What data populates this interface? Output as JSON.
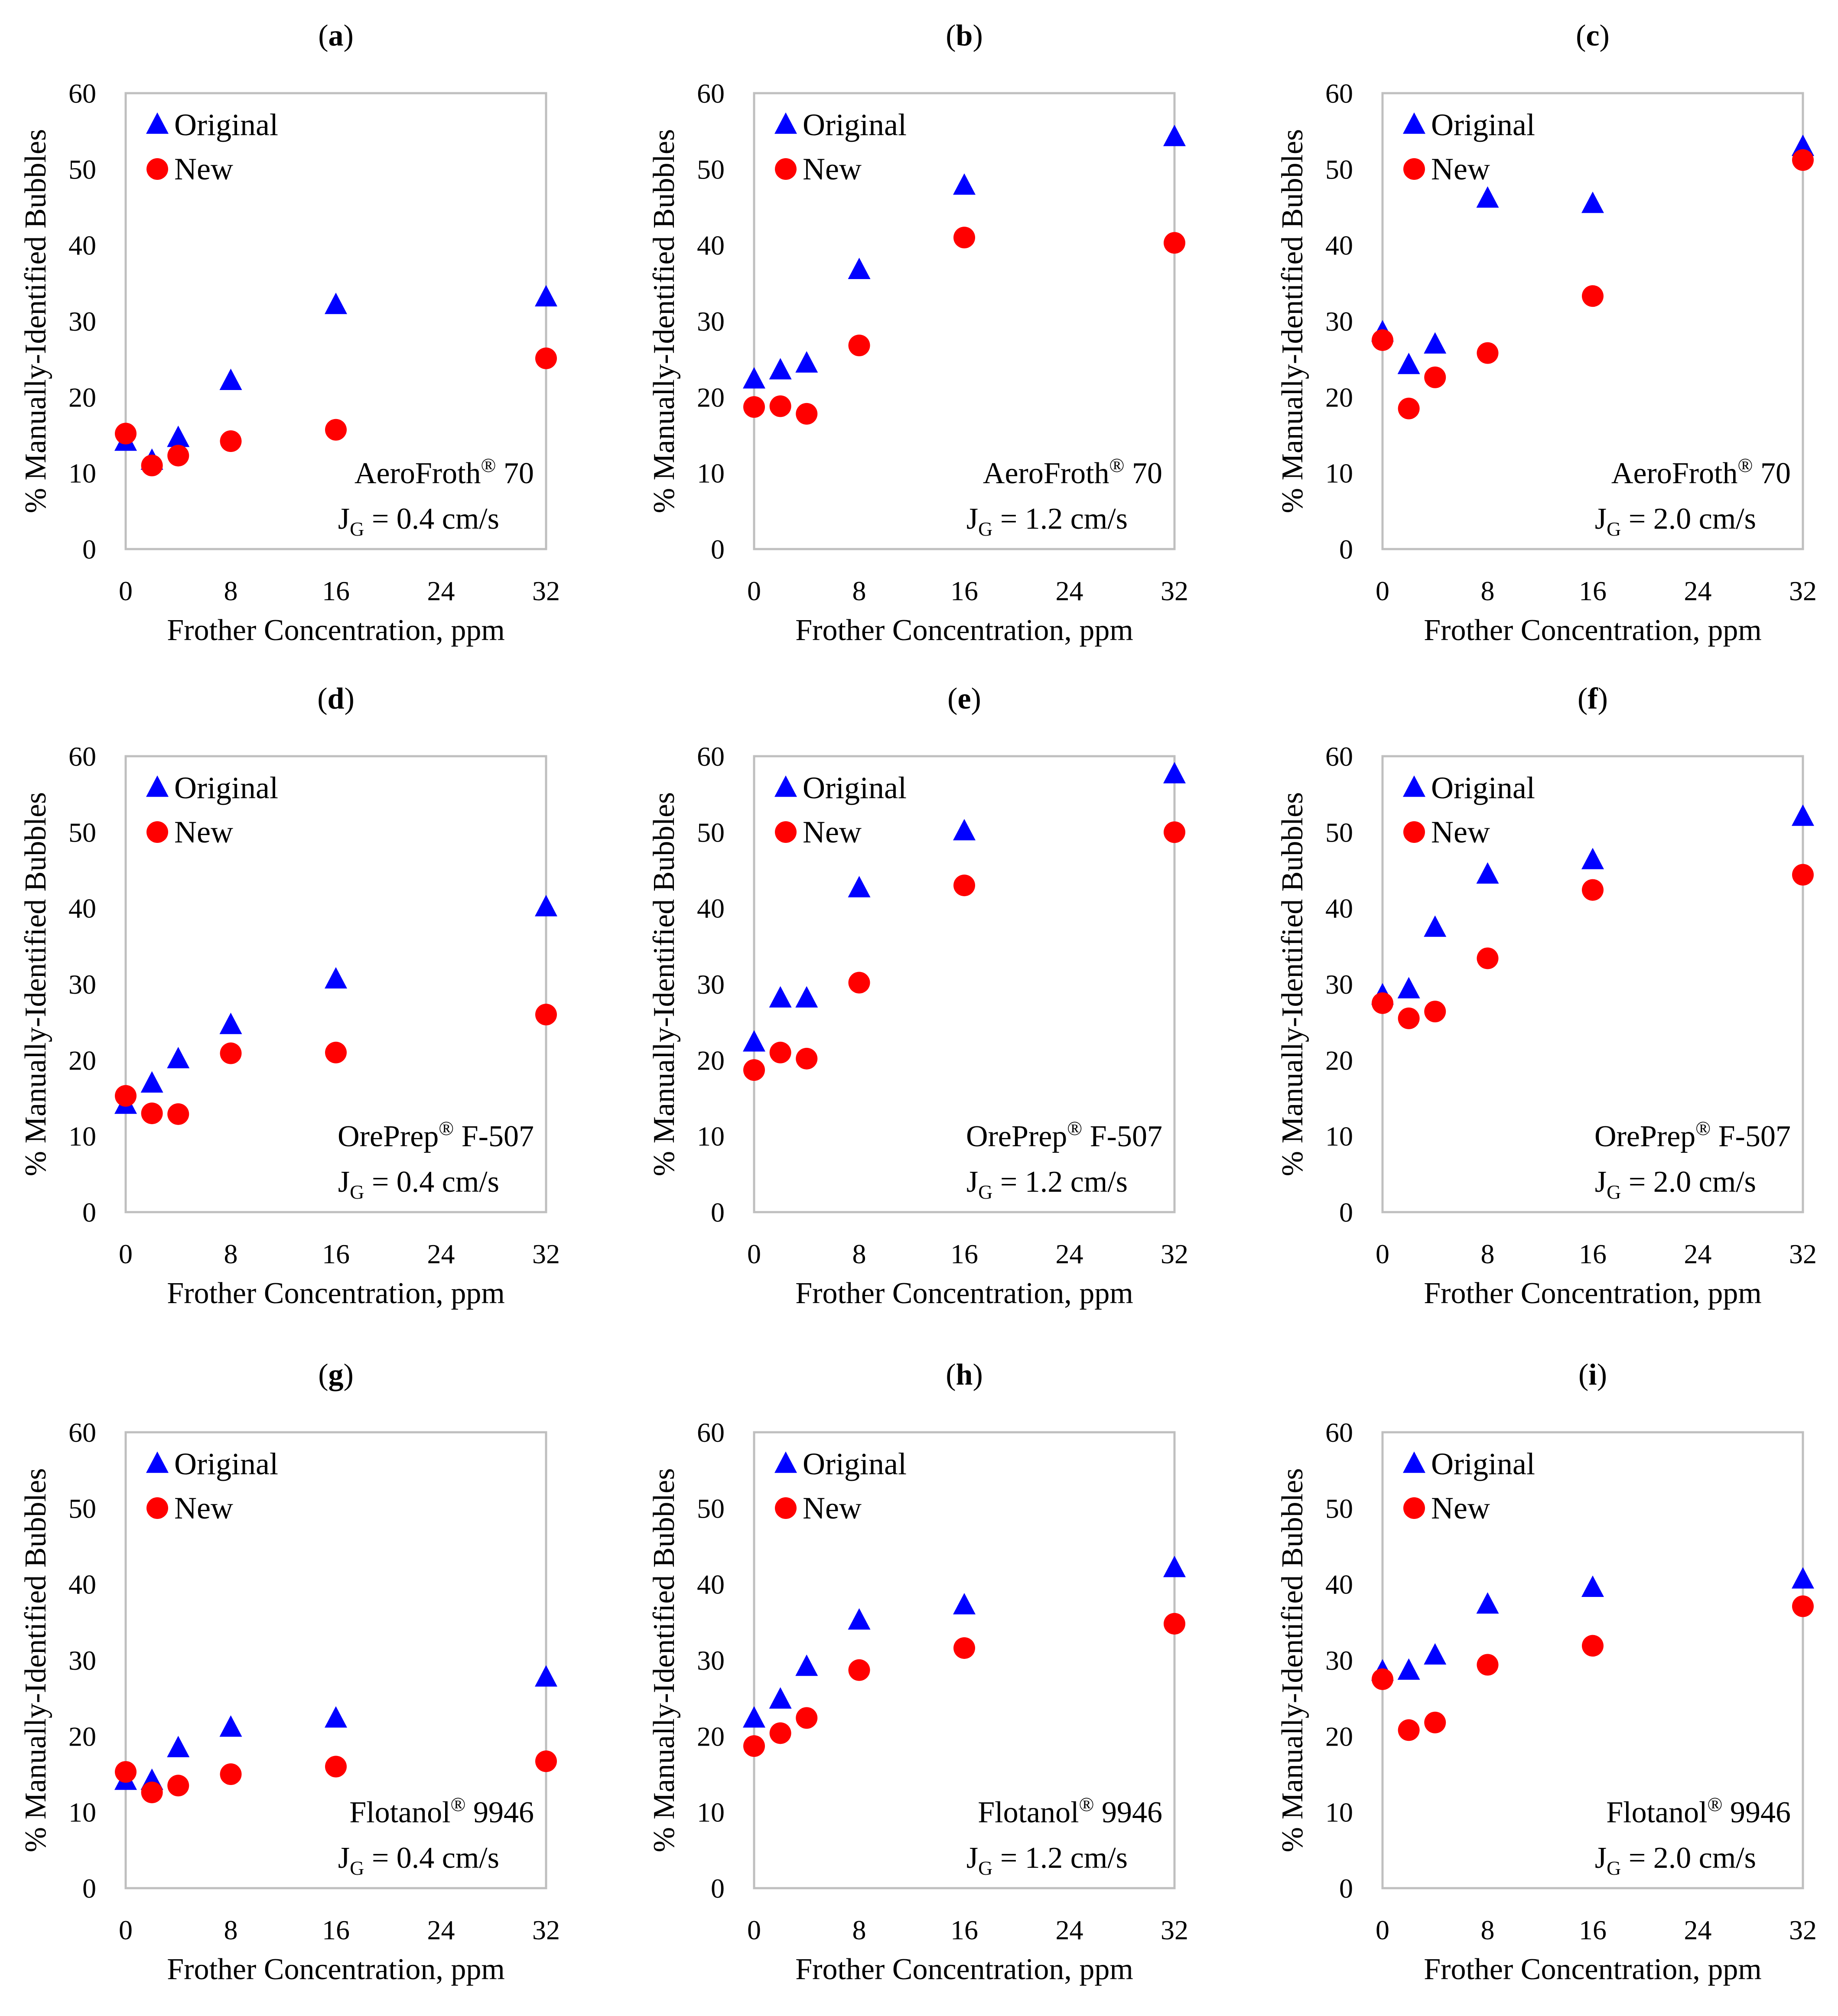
{
  "figure": {
    "legend": {
      "original": "Original",
      "new": "New"
    },
    "colors": {
      "original": "#0000FF",
      "new": "#FF0000",
      "frame": "#BFBFBF"
    }
  },
  "chart_data": [
    {
      "type": "scatter",
      "panel_letter": "a",
      "frother": "AeroFroth",
      "reg_mark": "®",
      "frother_suffix": " 70",
      "jg_prefix": "J",
      "jg_sub": "G",
      "jg_value": " = 0.4 cm/s",
      "xlabel": "Frother Concentration, ppm",
      "ylabel": "% Manually-Identified Bubbles",
      "xlim": [
        0,
        32
      ],
      "ylim": [
        0,
        60
      ],
      "xticks": [
        "0",
        "8",
        "16",
        "24",
        "32"
      ],
      "yticks": [
        "0",
        "10",
        "20",
        "30",
        "40",
        "50",
        "60"
      ],
      "series": [
        {
          "name": "Original",
          "marker": "triangle",
          "x": [
            0,
            2,
            4,
            8,
            16,
            32
          ],
          "y": [
            14,
            11.5,
            14.5,
            22,
            32,
            33
          ]
        },
        {
          "name": "New",
          "marker": "circle",
          "x": [
            0,
            2,
            4,
            8,
            16,
            32
          ],
          "y": [
            15.2,
            11,
            12.3,
            14.2,
            15.7,
            25.1
          ]
        }
      ]
    },
    {
      "type": "scatter",
      "panel_letter": "b",
      "frother": "AeroFroth",
      "reg_mark": "®",
      "frother_suffix": " 70",
      "jg_prefix": "J",
      "jg_sub": "G",
      "jg_value": " = 1.2 cm/s",
      "xlabel": "Frother Concentration, ppm",
      "ylabel": "% Manually-Identified Bubbles",
      "xlim": [
        0,
        32
      ],
      "ylim": [
        0,
        60
      ],
      "xticks": [
        "0",
        "8",
        "16",
        "24",
        "32"
      ],
      "yticks": [
        "0",
        "10",
        "20",
        "30",
        "40",
        "50",
        "60"
      ],
      "series": [
        {
          "name": "Original",
          "marker": "triangle",
          "x": [
            0,
            2,
            4,
            8,
            16,
            32
          ],
          "y": [
            22.2,
            23.4,
            24.3,
            36.6,
            47.7,
            54.1
          ]
        },
        {
          "name": "New",
          "marker": "circle",
          "x": [
            0,
            2,
            4,
            8,
            16,
            32
          ],
          "y": [
            18.7,
            18.8,
            17.8,
            26.8,
            41,
            40.3
          ]
        }
      ]
    },
    {
      "type": "scatter",
      "panel_letter": "c",
      "frother": "AeroFroth",
      "reg_mark": "®",
      "frother_suffix": " 70",
      "jg_prefix": "J",
      "jg_sub": "G",
      "jg_value": " = 2.0 cm/s",
      "xlabel": "Frother Concentration, ppm",
      "ylabel": "% Manually-Identified Bubbles",
      "xlim": [
        0,
        32
      ],
      "ylim": [
        0,
        60
      ],
      "xticks": [
        "0",
        "8",
        "16",
        "24",
        "32"
      ],
      "yticks": [
        "0",
        "10",
        "20",
        "30",
        "40",
        "50",
        "60"
      ],
      "series": [
        {
          "name": "Original",
          "marker": "triangle",
          "x": [
            0,
            2,
            4,
            8,
            16,
            32
          ],
          "y": [
            28.4,
            24.1,
            26.8,
            46,
            45.3,
            52.8
          ]
        },
        {
          "name": "New",
          "marker": "circle",
          "x": [
            0,
            2,
            4,
            8,
            16,
            32
          ],
          "y": [
            27.5,
            18.5,
            22.6,
            25.8,
            33.3,
            51.2
          ]
        }
      ]
    },
    {
      "type": "scatter",
      "panel_letter": "d",
      "frother": "OrePrep",
      "reg_mark": "®",
      "frother_suffix": " F-507",
      "jg_prefix": "J",
      "jg_sub": "G",
      "jg_value": " = 0.4 cm/s",
      "xlabel": "Frother Concentration, ppm",
      "ylabel": "% Manually-Identified Bubbles",
      "xlim": [
        0,
        32
      ],
      "ylim": [
        0,
        60
      ],
      "xticks": [
        "0",
        "8",
        "16",
        "24",
        "32"
      ],
      "yticks": [
        "0",
        "10",
        "20",
        "30",
        "40",
        "50",
        "60"
      ],
      "series": [
        {
          "name": "Original",
          "marker": "triangle",
          "x": [
            0,
            2,
            4,
            8,
            16,
            32
          ],
          "y": [
            14,
            16.8,
            20,
            24.5,
            30.5,
            40
          ]
        },
        {
          "name": "New",
          "marker": "circle",
          "x": [
            0,
            2,
            4,
            8,
            16,
            32
          ],
          "y": [
            15.3,
            13,
            12.9,
            20.9,
            21,
            26
          ]
        }
      ]
    },
    {
      "type": "scatter",
      "panel_letter": "e",
      "frother": "OrePrep",
      "reg_mark": "®",
      "frother_suffix": " F-507",
      "jg_prefix": "J",
      "jg_sub": "G",
      "jg_value": " = 1.2 cm/s",
      "xlabel": "Frother Concentration, ppm",
      "ylabel": "% Manually-Identified Bubbles",
      "xlim": [
        0,
        32
      ],
      "ylim": [
        0,
        60
      ],
      "xticks": [
        "0",
        "8",
        "16",
        "24",
        "32"
      ],
      "yticks": [
        "0",
        "10",
        "20",
        "30",
        "40",
        "50",
        "60"
      ],
      "series": [
        {
          "name": "Original",
          "marker": "triangle",
          "x": [
            0,
            2,
            4,
            8,
            16,
            32
          ],
          "y": [
            22.2,
            28,
            28,
            42.5,
            50,
            57.5
          ]
        },
        {
          "name": "New",
          "marker": "circle",
          "x": [
            0,
            2,
            4,
            8,
            16,
            32
          ],
          "y": [
            18.7,
            21,
            20.2,
            30.2,
            43,
            50
          ]
        }
      ]
    },
    {
      "type": "scatter",
      "panel_letter": "f",
      "frother": "OrePrep",
      "reg_mark": "®",
      "frother_suffix": " F-507",
      "jg_prefix": "J",
      "jg_sub": "G",
      "jg_value": " = 2.0 cm/s",
      "xlabel": "Frother Concentration, ppm",
      "ylabel": "% Manually-Identified Bubbles",
      "xlim": [
        0,
        32
      ],
      "ylim": [
        0,
        60
      ],
      "xticks": [
        "0",
        "8",
        "16",
        "24",
        "32"
      ],
      "yticks": [
        "0",
        "10",
        "20",
        "30",
        "40",
        "50",
        "60"
      ],
      "series": [
        {
          "name": "Original",
          "marker": "triangle",
          "x": [
            0,
            2,
            4,
            8,
            16,
            32
          ],
          "y": [
            28.4,
            29.2,
            37.3,
            44.3,
            46.2,
            51.9
          ]
        },
        {
          "name": "New",
          "marker": "circle",
          "x": [
            0,
            2,
            4,
            8,
            16,
            32
          ],
          "y": [
            27.5,
            25.5,
            26.4,
            33.4,
            42.4,
            44.4
          ]
        }
      ]
    },
    {
      "type": "scatter",
      "panel_letter": "g",
      "frother": "Flotanol",
      "reg_mark": "®",
      "frother_suffix": " 9946",
      "jg_prefix": "J",
      "jg_sub": "G",
      "jg_value": " = 0.4 cm/s",
      "xlabel": "Frother Concentration, ppm",
      "ylabel": "% Manually-Identified Bubbles",
      "xlim": [
        0,
        32
      ],
      "ylim": [
        0,
        60
      ],
      "xticks": [
        "0",
        "8",
        "16",
        "24",
        "32"
      ],
      "yticks": [
        "0",
        "10",
        "20",
        "30",
        "40",
        "50",
        "60"
      ],
      "series": [
        {
          "name": "Original",
          "marker": "triangle",
          "x": [
            0,
            2,
            4,
            8,
            16,
            32
          ],
          "y": [
            14,
            14,
            18.3,
            21,
            22.2,
            27.6
          ]
        },
        {
          "name": "New",
          "marker": "circle",
          "x": [
            0,
            2,
            4,
            8,
            16,
            32
          ],
          "y": [
            15.3,
            12.6,
            13.5,
            15,
            16,
            16.7
          ]
        }
      ]
    },
    {
      "type": "scatter",
      "panel_letter": "h",
      "frother": "Flotanol",
      "reg_mark": "®",
      "frother_suffix": " 9946",
      "jg_prefix": "J",
      "jg_sub": "G",
      "jg_value": " = 1.2 cm/s",
      "xlabel": "Frother Concentration, ppm",
      "ylabel": "% Manually-Identified Bubbles",
      "xlim": [
        0,
        32
      ],
      "ylim": [
        0,
        60
      ],
      "xticks": [
        "0",
        "8",
        "16",
        "24",
        "32"
      ],
      "yticks": [
        "0",
        "10",
        "20",
        "30",
        "40",
        "50",
        "60"
      ],
      "series": [
        {
          "name": "Original",
          "marker": "triangle",
          "x": [
            0,
            2,
            4,
            8,
            16,
            32
          ],
          "y": [
            22.2,
            24.7,
            29,
            35.1,
            37.1,
            42
          ]
        },
        {
          "name": "New",
          "marker": "circle",
          "x": [
            0,
            2,
            4,
            8,
            16,
            32
          ],
          "y": [
            18.7,
            20.4,
            22.4,
            28.7,
            31.6,
            34.8
          ]
        }
      ]
    },
    {
      "type": "scatter",
      "panel_letter": "i",
      "frother": "Flotanol",
      "reg_mark": "®",
      "frother_suffix": " 9946",
      "jg_prefix": "J",
      "jg_sub": "G",
      "jg_value": " = 2.0 cm/s",
      "xlabel": "Frother Concentration, ppm",
      "ylabel": "% Manually-Identified Bubbles",
      "xlim": [
        0,
        32
      ],
      "ylim": [
        0,
        60
      ],
      "xticks": [
        "0",
        "8",
        "16",
        "24",
        "32"
      ],
      "yticks": [
        "0",
        "10",
        "20",
        "30",
        "40",
        "50",
        "60"
      ],
      "series": [
        {
          "name": "Original",
          "marker": "triangle",
          "x": [
            0,
            2,
            4,
            8,
            16,
            32
          ],
          "y": [
            28.4,
            28.5,
            30.5,
            37.2,
            39.4,
            40.5
          ]
        },
        {
          "name": "New",
          "marker": "circle",
          "x": [
            0,
            2,
            4,
            8,
            16,
            32
          ],
          "y": [
            27.5,
            20.8,
            21.8,
            29.4,
            31.9,
            37.1
          ]
        }
      ]
    }
  ]
}
